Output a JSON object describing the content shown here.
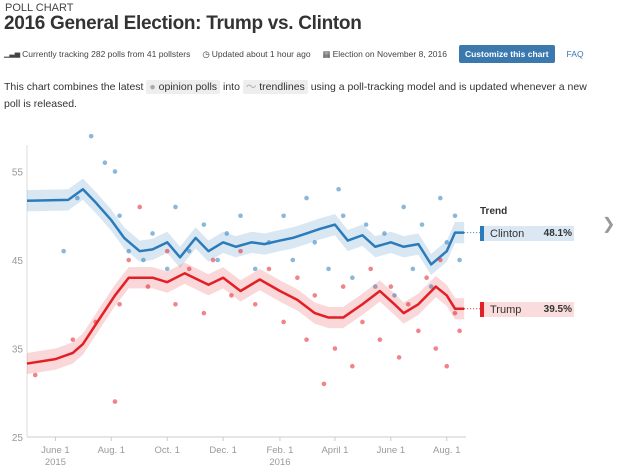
{
  "header": {
    "kicker": "POLL CHART",
    "title": "2016 General Election: Trump vs. Clinton"
  },
  "meta": {
    "tracking": "Currently tracking 282 polls from 41 pollsters",
    "updated": "Updated about 1 hour ago",
    "election": "Election on November 8, 2016",
    "customize": "Customize this chart",
    "faq": "FAQ"
  },
  "description": {
    "pre": "This chart combines the latest",
    "polls": "opinion polls",
    "mid": "into",
    "trend": "trendlines",
    "post": "using a poll-tracking model and is updated whenever a new poll is released."
  },
  "legend": {
    "title": "Trend",
    "items": [
      {
        "name": "Clinton",
        "value": "48.1%"
      },
      {
        "name": "Trump",
        "value": "39.5%"
      }
    ]
  },
  "chart_data": {
    "type": "line",
    "ylim": [
      25,
      58
    ],
    "yticks": [
      25,
      35,
      45,
      55
    ],
    "xlim": [
      "2015-05-01",
      "2016-08-22"
    ],
    "xticks": [
      {
        "date": "2015-06-01",
        "label": "June 1",
        "sub": "2015"
      },
      {
        "date": "2015-08-01",
        "label": "Aug. 1",
        "sub": ""
      },
      {
        "date": "2015-10-01",
        "label": "Oct. 1",
        "sub": ""
      },
      {
        "date": "2015-12-01",
        "label": "Dec. 1",
        "sub": ""
      },
      {
        "date": "2016-02-01",
        "label": "Feb. 1",
        "sub": "2016"
      },
      {
        "date": "2016-04-01",
        "label": "April 1",
        "sub": ""
      },
      {
        "date": "2016-06-01",
        "label": "June 1",
        "sub": ""
      },
      {
        "date": "2016-08-01",
        "label": "Aug. 1",
        "sub": ""
      }
    ],
    "series": [
      {
        "name": "Clinton",
        "color": "#2b7bba",
        "band": 1.2,
        "trend": [
          [
            "2015-05-01",
            51.7
          ],
          [
            "2015-06-15",
            51.8
          ],
          [
            "2015-07-01",
            53
          ],
          [
            "2015-07-15",
            51.5
          ],
          [
            "2015-08-01",
            49.5
          ],
          [
            "2015-08-15",
            47.5
          ],
          [
            "2015-09-01",
            46
          ],
          [
            "2015-09-15",
            46.2
          ],
          [
            "2015-10-01",
            47
          ],
          [
            "2015-10-15",
            45.3
          ],
          [
            "2015-11-01",
            47.5
          ],
          [
            "2015-11-15",
            46
          ],
          [
            "2015-12-01",
            47
          ],
          [
            "2015-12-15",
            46.5
          ],
          [
            "2016-01-01",
            47
          ],
          [
            "2016-01-15",
            46.8
          ],
          [
            "2016-02-01",
            47.2
          ],
          [
            "2016-02-15",
            47.5
          ],
          [
            "2016-03-01",
            48
          ],
          [
            "2016-03-15",
            48.5
          ],
          [
            "2016-04-01",
            49
          ],
          [
            "2016-04-15",
            47.2
          ],
          [
            "2016-05-01",
            47.8
          ],
          [
            "2016-05-15",
            46.5
          ],
          [
            "2016-06-01",
            47
          ],
          [
            "2016-06-15",
            46.5
          ],
          [
            "2016-07-01",
            46.8
          ],
          [
            "2016-07-15",
            44.5
          ],
          [
            "2016-08-01",
            46
          ],
          [
            "2016-08-10",
            48.1
          ],
          [
            "2016-08-20",
            48.1
          ]
        ],
        "polls": [
          [
            "2015-06-10",
            46
          ],
          [
            "2015-06-25",
            52
          ],
          [
            "2015-07-10",
            59
          ],
          [
            "2015-07-25",
            56
          ],
          [
            "2015-08-05",
            55
          ],
          [
            "2015-08-10",
            50
          ],
          [
            "2015-08-20",
            46
          ],
          [
            "2015-09-05",
            45
          ],
          [
            "2015-09-15",
            48
          ],
          [
            "2015-10-01",
            44
          ],
          [
            "2015-10-10",
            51
          ],
          [
            "2015-10-25",
            46
          ],
          [
            "2015-11-10",
            49
          ],
          [
            "2015-11-25",
            45
          ],
          [
            "2015-12-05",
            48
          ],
          [
            "2015-12-20",
            50
          ],
          [
            "2016-01-05",
            44
          ],
          [
            "2016-01-20",
            47
          ],
          [
            "2016-02-05",
            50
          ],
          [
            "2016-02-15",
            45
          ],
          [
            "2016-03-01",
            52
          ],
          [
            "2016-03-10",
            47
          ],
          [
            "2016-03-25",
            44
          ],
          [
            "2016-04-05",
            53
          ],
          [
            "2016-04-10",
            50
          ],
          [
            "2016-04-20",
            43
          ],
          [
            "2016-05-05",
            49
          ],
          [
            "2016-05-15",
            42
          ],
          [
            "2016-05-25",
            48
          ],
          [
            "2016-06-05",
            41
          ],
          [
            "2016-06-15",
            51
          ],
          [
            "2016-06-25",
            44
          ],
          [
            "2016-07-05",
            49
          ],
          [
            "2016-07-15",
            42
          ],
          [
            "2016-07-25",
            52
          ],
          [
            "2016-08-01",
            47
          ],
          [
            "2016-08-10",
            50
          ],
          [
            "2016-08-15",
            45
          ]
        ]
      },
      {
        "name": "Trump",
        "color": "#e31f26",
        "band": 1.2,
        "trend": [
          [
            "2015-05-01",
            33.3
          ],
          [
            "2015-06-01",
            33.8
          ],
          [
            "2015-06-20",
            34.5
          ],
          [
            "2015-07-01",
            35.5
          ],
          [
            "2015-07-20",
            38.5
          ],
          [
            "2015-08-05",
            41
          ],
          [
            "2015-08-20",
            43
          ],
          [
            "2015-09-15",
            43
          ],
          [
            "2015-10-01",
            42.5
          ],
          [
            "2015-10-20",
            43.5
          ],
          [
            "2015-11-15",
            42.2
          ],
          [
            "2015-12-01",
            43
          ],
          [
            "2015-12-20",
            41.5
          ],
          [
            "2016-01-10",
            42.8
          ],
          [
            "2016-02-01",
            41.5
          ],
          [
            "2016-02-20",
            40.5
          ],
          [
            "2016-03-10",
            39
          ],
          [
            "2016-03-25",
            38.5
          ],
          [
            "2016-04-10",
            38.5
          ],
          [
            "2016-05-01",
            40
          ],
          [
            "2016-05-20",
            41.5
          ],
          [
            "2016-06-05",
            40
          ],
          [
            "2016-06-15",
            39
          ],
          [
            "2016-07-01",
            40
          ],
          [
            "2016-07-20",
            42
          ],
          [
            "2016-08-01",
            41
          ],
          [
            "2016-08-10",
            39.5
          ],
          [
            "2016-08-20",
            39.5
          ]
        ],
        "polls": [
          [
            "2015-05-10",
            32
          ],
          [
            "2015-06-20",
            36
          ],
          [
            "2015-07-15",
            38
          ],
          [
            "2015-08-05",
            29
          ],
          [
            "2015-08-10",
            40
          ],
          [
            "2015-08-20",
            45
          ],
          [
            "2015-09-01",
            51
          ],
          [
            "2015-09-10",
            42
          ],
          [
            "2015-10-01",
            46
          ],
          [
            "2015-10-10",
            40
          ],
          [
            "2015-10-25",
            44
          ],
          [
            "2015-11-10",
            39
          ],
          [
            "2015-11-20",
            45
          ],
          [
            "2015-12-10",
            41
          ],
          [
            "2015-12-20",
            46
          ],
          [
            "2016-01-05",
            40
          ],
          [
            "2016-01-20",
            44
          ],
          [
            "2016-02-05",
            38
          ],
          [
            "2016-02-20",
            43
          ],
          [
            "2016-03-01",
            36
          ],
          [
            "2016-03-10",
            41
          ],
          [
            "2016-03-20",
            31
          ],
          [
            "2016-04-01",
            35
          ],
          [
            "2016-04-10",
            42
          ],
          [
            "2016-04-20",
            33
          ],
          [
            "2016-05-01",
            38
          ],
          [
            "2016-05-10",
            44
          ],
          [
            "2016-05-20",
            36
          ],
          [
            "2016-06-01",
            42
          ],
          [
            "2016-06-10",
            34
          ],
          [
            "2016-06-20",
            40
          ],
          [
            "2016-07-01",
            37
          ],
          [
            "2016-07-10",
            43
          ],
          [
            "2016-07-20",
            35
          ],
          [
            "2016-07-25",
            45
          ],
          [
            "2016-08-01",
            33
          ],
          [
            "2016-08-10",
            39
          ],
          [
            "2016-08-15",
            37
          ]
        ]
      }
    ]
  }
}
